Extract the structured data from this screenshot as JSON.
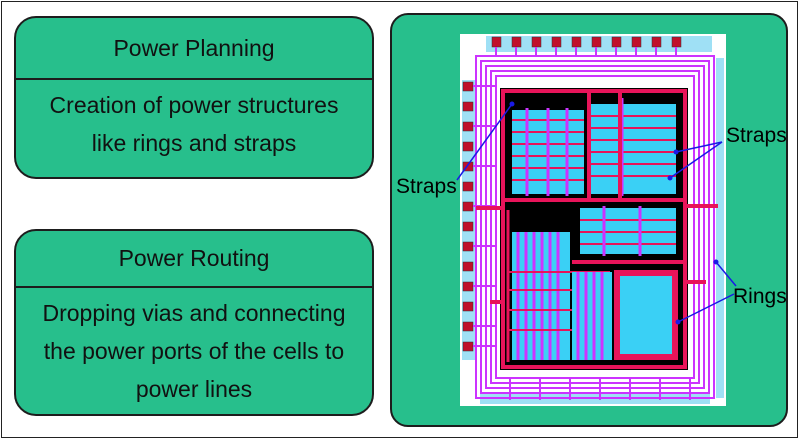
{
  "cards": [
    {
      "title": "Power Planning",
      "body": "Creation of power structures like rings and straps"
    },
    {
      "title": "Power Routing",
      "body": "Dropping vias and connecting the power ports of the cells to power lines"
    }
  ],
  "diagram": {
    "labels": {
      "straps_left": "Straps",
      "straps_right": "Straps",
      "rings": "Rings"
    },
    "colors": {
      "panel": "#27bf8c",
      "ring_purple": "#cc33ff",
      "strap_red": "#e8145a",
      "block_cyan": "#3ad0f5",
      "die_black": "#000000",
      "pads_red": "#c0102a",
      "arrow_blue": "#1a1ae6"
    }
  }
}
